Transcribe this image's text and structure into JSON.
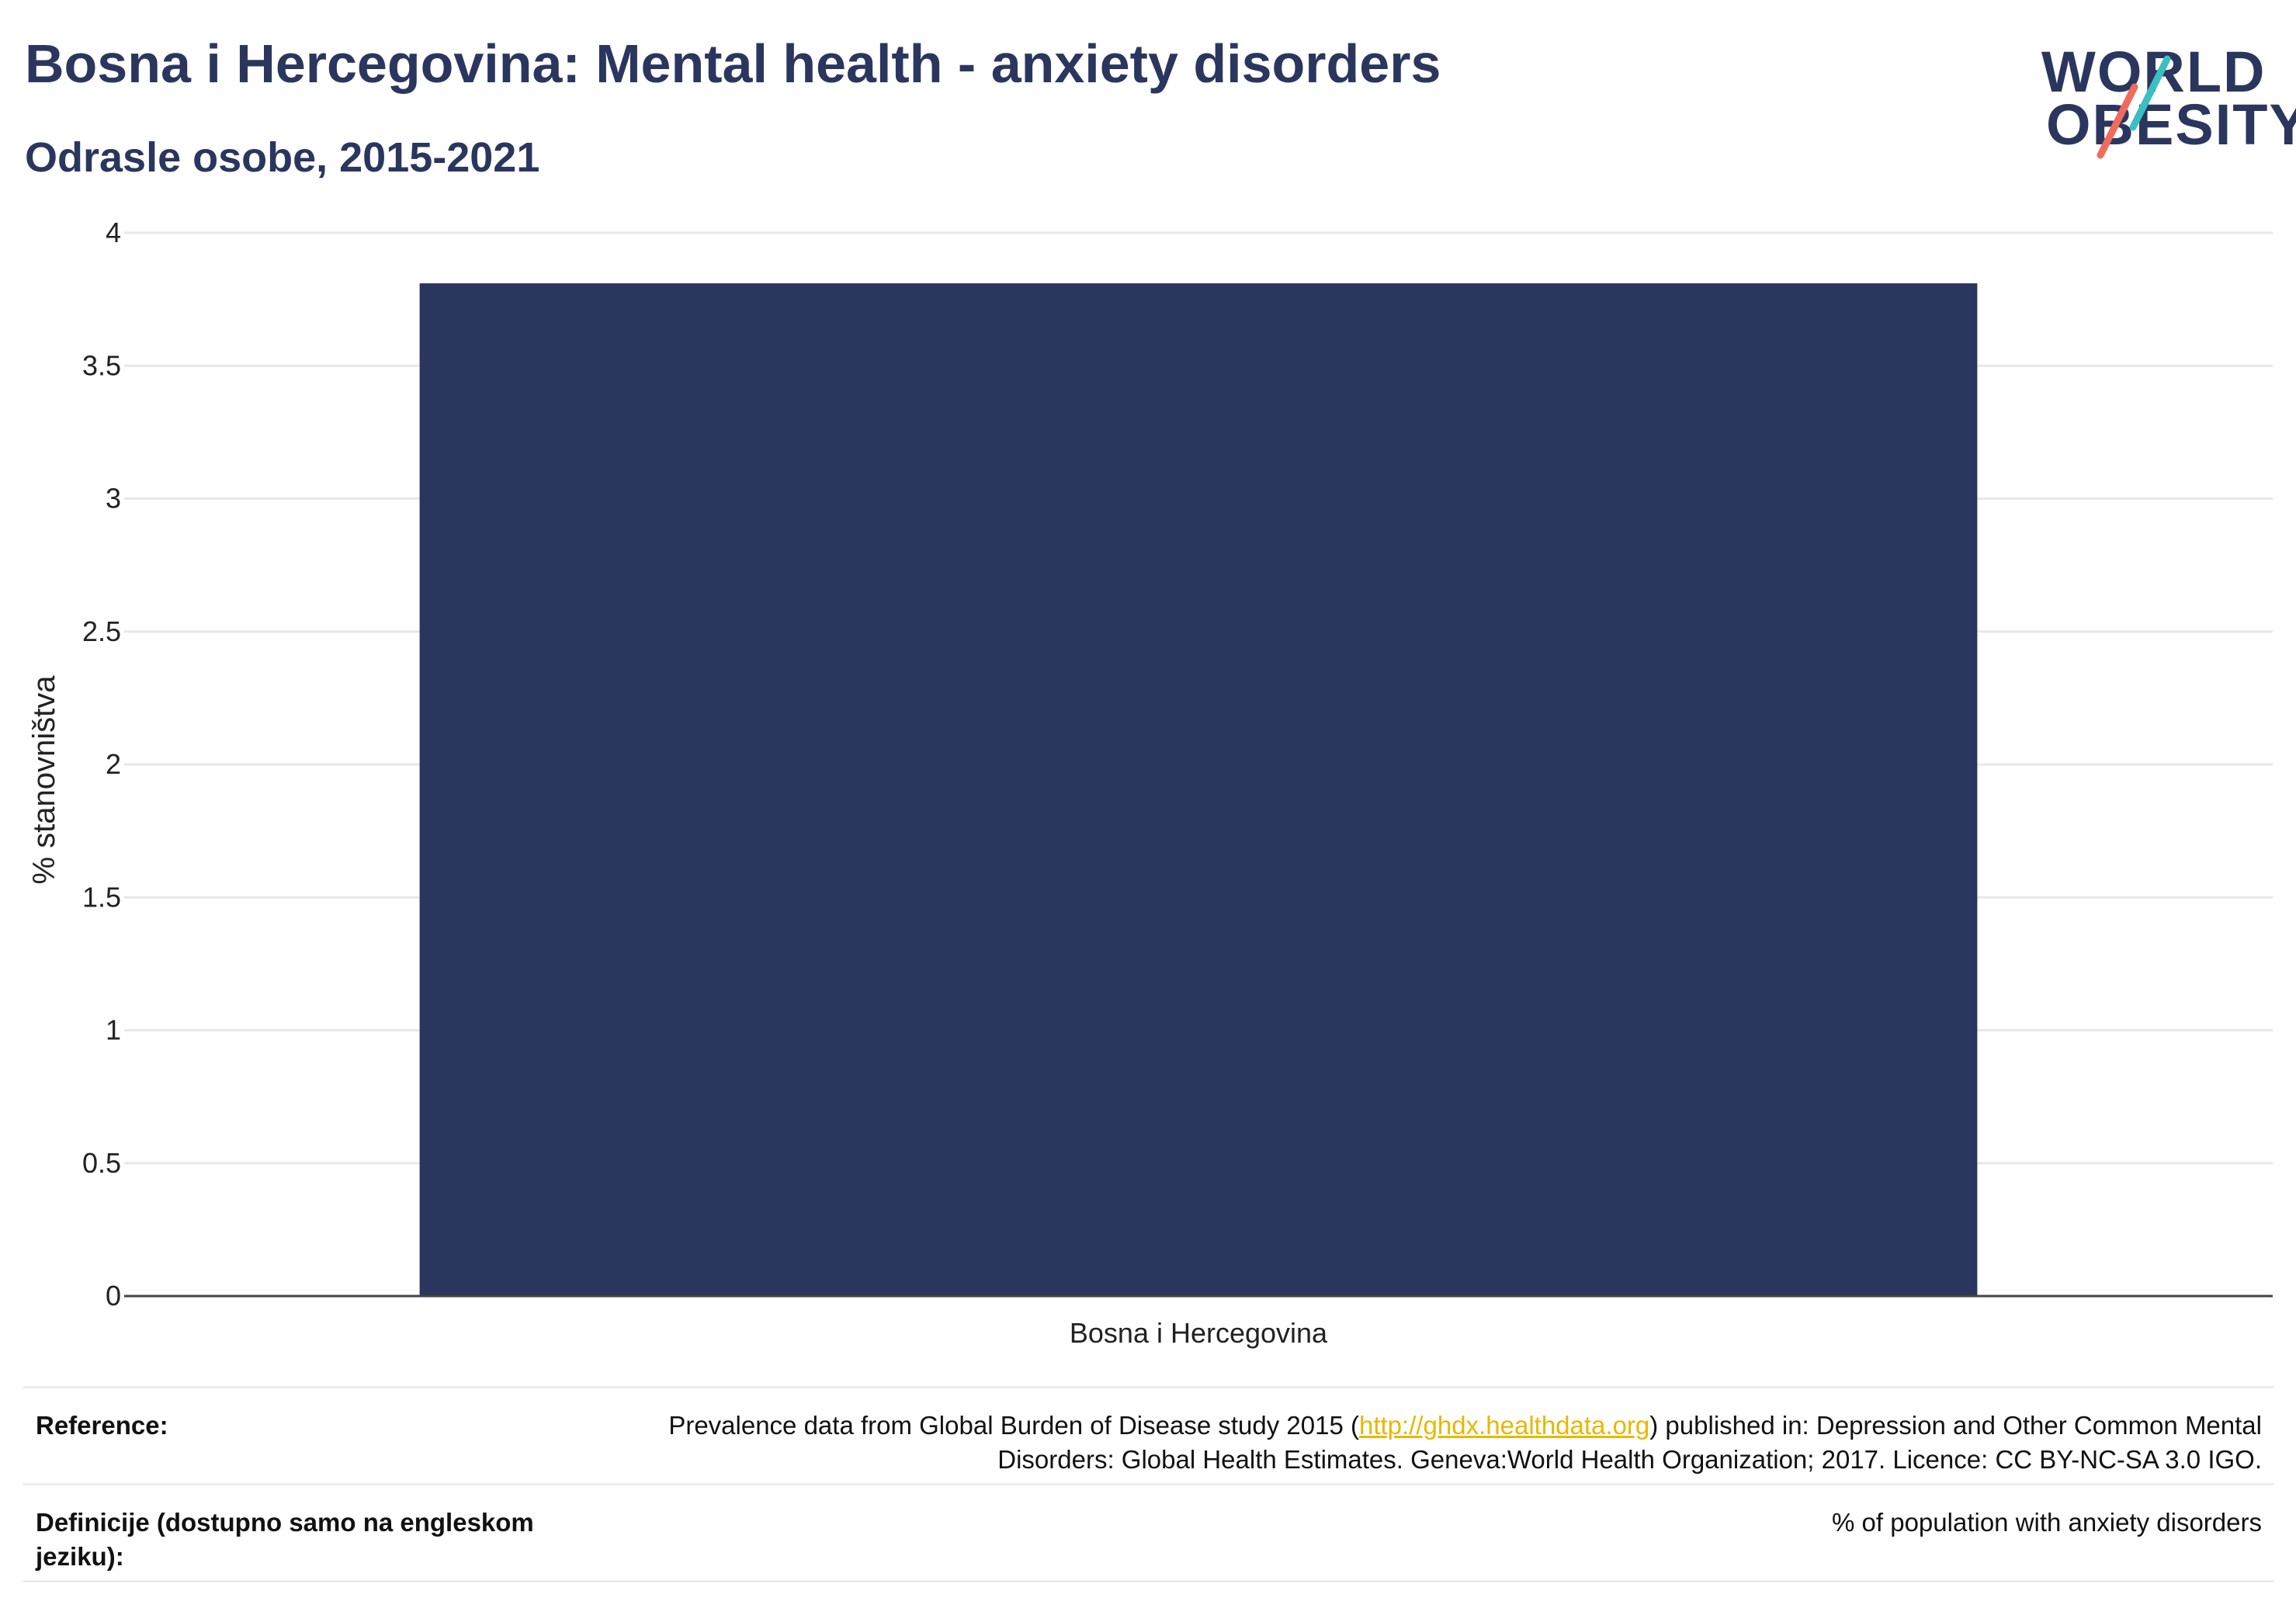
{
  "header": {
    "title": "Bosna i Hercegovina: Mental health - anxiety disorders",
    "subtitle": "Odrasle osobe, 2015-2021"
  },
  "logo": {
    "line1": "WORLD",
    "line2": "OBESITY",
    "colors": {
      "text": "#2b365f",
      "slash_top": "#3bbfc1",
      "slash_bottom": "#ef6b5b"
    }
  },
  "chart_data": {
    "type": "bar",
    "categories": [
      "Bosna i Hercegovina"
    ],
    "values": [
      3.81
    ],
    "title": "",
    "xlabel": "",
    "ylabel": "% stanovništva",
    "ylim": [
      0,
      4
    ],
    "yticks": [
      0,
      0.5,
      1,
      1.5,
      2,
      2.5,
      3,
      3.5,
      4
    ],
    "ytick_labels": [
      "0",
      "0.5",
      "1",
      "1.5",
      "2",
      "2.5",
      "3",
      "3.5",
      "4"
    ],
    "grid": true,
    "bar_color": "#2b365f"
  },
  "reference": {
    "label": "Reference:",
    "text_before": "Prevalence data from Global Burden of Disease study 2015 (",
    "link": "http://ghdx.healthdata.org",
    "text_after": ") published in: Depression and Other Common Mental Disorders: Global Health Estimates. Geneva:World Health Organization; 2017. Licence: CC BY-NC-SA 3.0 IGO."
  },
  "definition": {
    "label": "Definicije (dostupno samo na engleskom jeziku):",
    "value": "% of population with anxiety disorders"
  }
}
